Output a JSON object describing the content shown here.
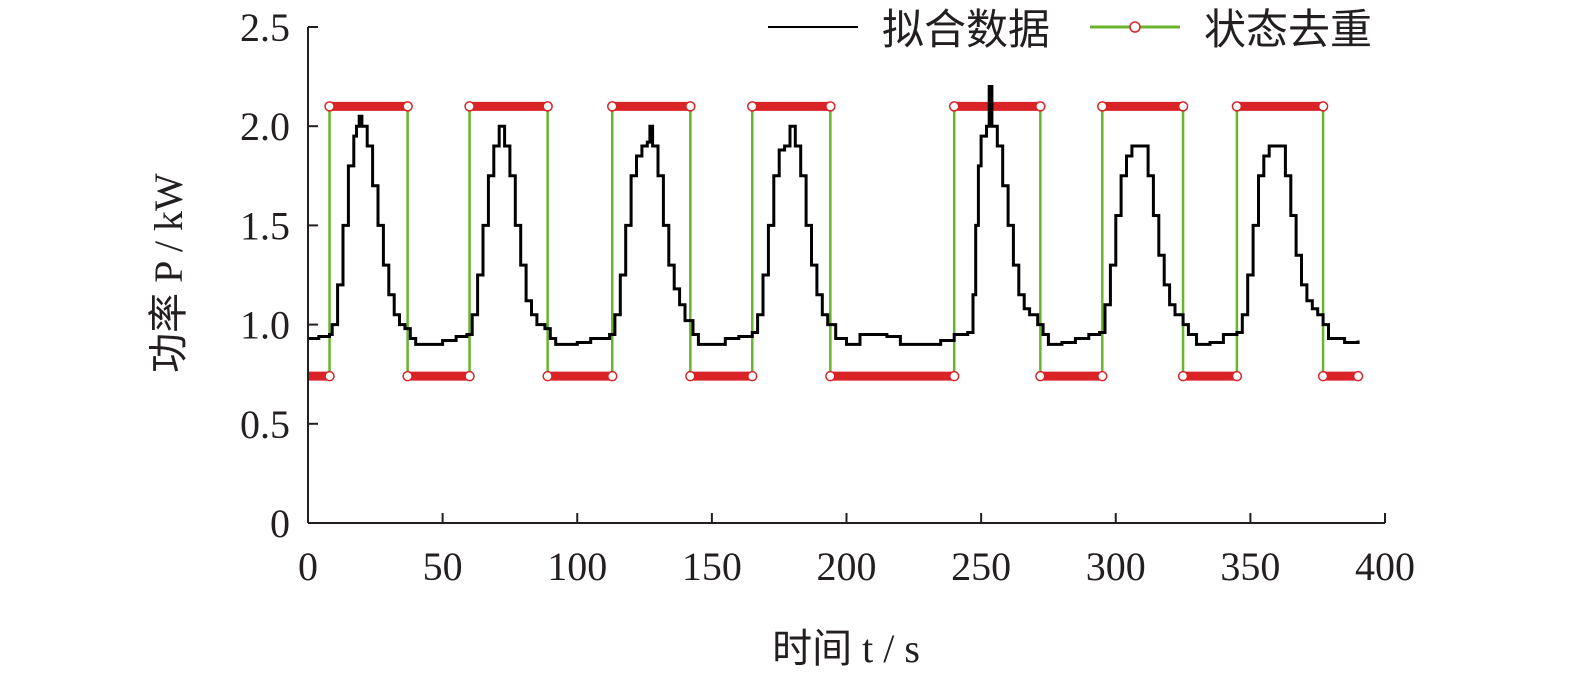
{
  "chart_data": {
    "type": "line",
    "xlabel": "时间 t / s",
    "ylabel": "功率 P / kW",
    "xlim": [
      0,
      400
    ],
    "ylim": [
      0,
      2.5
    ],
    "x_ticks": [
      "0",
      "50",
      "100",
      "150",
      "200",
      "250",
      "300",
      "350",
      "400"
    ],
    "y_ticks": [
      "0",
      "0.5",
      "1.0",
      "1.5",
      "2.0",
      "2.5"
    ],
    "legend_position": "top-right",
    "grid": false,
    "series": [
      {
        "name": "拟合数据",
        "color": "#000000",
        "style": "step-line",
        "points": [
          [
            0,
            0.93
          ],
          [
            4,
            0.94
          ],
          [
            8,
            0.95
          ],
          [
            9,
            1.0
          ],
          [
            11,
            1.2
          ],
          [
            13,
            1.5
          ],
          [
            15,
            1.8
          ],
          [
            17,
            1.95
          ],
          [
            18,
            2.0
          ],
          [
            19,
            2.05
          ],
          [
            20,
            2.0
          ],
          [
            22,
            1.9
          ],
          [
            24,
            1.7
          ],
          [
            26,
            1.5
          ],
          [
            28,
            1.3
          ],
          [
            30,
            1.15
          ],
          [
            32,
            1.05
          ],
          [
            34,
            1.0
          ],
          [
            36,
            0.98
          ],
          [
            38,
            0.93
          ],
          [
            40,
            0.9
          ],
          [
            45,
            0.9
          ],
          [
            50,
            0.92
          ],
          [
            55,
            0.94
          ],
          [
            59,
            0.95
          ],
          [
            61,
            1.05
          ],
          [
            63,
            1.25
          ],
          [
            65,
            1.5
          ],
          [
            67,
            1.75
          ],
          [
            69,
            1.9
          ],
          [
            71,
            2.0
          ],
          [
            73,
            1.9
          ],
          [
            75,
            1.75
          ],
          [
            77,
            1.5
          ],
          [
            79,
            1.3
          ],
          [
            81,
            1.12
          ],
          [
            83,
            1.05
          ],
          [
            85,
            1.0
          ],
          [
            88,
            0.98
          ],
          [
            90,
            0.93
          ],
          [
            92,
            0.9
          ],
          [
            100,
            0.91
          ],
          [
            105,
            0.93
          ],
          [
            112,
            0.95
          ],
          [
            114,
            1.05
          ],
          [
            116,
            1.25
          ],
          [
            118,
            1.5
          ],
          [
            120,
            1.75
          ],
          [
            122,
            1.85
          ],
          [
            124,
            1.9
          ],
          [
            126,
            1.92
          ],
          [
            127,
            2.0
          ],
          [
            128,
            1.9
          ],
          [
            130,
            1.75
          ],
          [
            132,
            1.5
          ],
          [
            134,
            1.3
          ],
          [
            136,
            1.18
          ],
          [
            138,
            1.1
          ],
          [
            140,
            1.02
          ],
          [
            143,
            0.95
          ],
          [
            145,
            0.9
          ],
          [
            150,
            0.9
          ],
          [
            155,
            0.93
          ],
          [
            160,
            0.94
          ],
          [
            165,
            0.96
          ],
          [
            167,
            1.05
          ],
          [
            169,
            1.25
          ],
          [
            171,
            1.5
          ],
          [
            173,
            1.75
          ],
          [
            175,
            1.88
          ],
          [
            177,
            1.9
          ],
          [
            179,
            2.0
          ],
          [
            181,
            1.9
          ],
          [
            183,
            1.75
          ],
          [
            185,
            1.5
          ],
          [
            187,
            1.3
          ],
          [
            189,
            1.15
          ],
          [
            191,
            1.05
          ],
          [
            193,
            1.0
          ],
          [
            196,
            0.93
          ],
          [
            200,
            0.9
          ],
          [
            205,
            0.95
          ],
          [
            210,
            0.95
          ],
          [
            215,
            0.94
          ],
          [
            220,
            0.9
          ],
          [
            230,
            0.9
          ],
          [
            235,
            0.92
          ],
          [
            240,
            0.95
          ],
          [
            245,
            0.96
          ],
          [
            247,
            1.15
          ],
          [
            248,
            1.5
          ],
          [
            249,
            1.8
          ],
          [
            250,
            1.95
          ],
          [
            252,
            2.0
          ],
          [
            253,
            2.2
          ],
          [
            254,
            2.0
          ],
          [
            256,
            1.9
          ],
          [
            258,
            1.7
          ],
          [
            260,
            1.5
          ],
          [
            262,
            1.3
          ],
          [
            264,
            1.15
          ],
          [
            266,
            1.08
          ],
          [
            268,
            1.05
          ],
          [
            271,
            1.0
          ],
          [
            273,
            0.95
          ],
          [
            275,
            0.9
          ],
          [
            280,
            0.91
          ],
          [
            285,
            0.93
          ],
          [
            290,
            0.95
          ],
          [
            294,
            0.96
          ],
          [
            296,
            1.1
          ],
          [
            298,
            1.3
          ],
          [
            300,
            1.55
          ],
          [
            302,
            1.75
          ],
          [
            304,
            1.85
          ],
          [
            306,
            1.9
          ],
          [
            310,
            1.9
          ],
          [
            312,
            1.75
          ],
          [
            314,
            1.55
          ],
          [
            316,
            1.35
          ],
          [
            318,
            1.2
          ],
          [
            320,
            1.1
          ],
          [
            322,
            1.05
          ],
          [
            325,
            1.0
          ],
          [
            327,
            0.95
          ],
          [
            330,
            0.9
          ],
          [
            335,
            0.91
          ],
          [
            340,
            0.95
          ],
          [
            345,
            0.96
          ],
          [
            347,
            1.05
          ],
          [
            349,
            1.25
          ],
          [
            351,
            1.5
          ],
          [
            353,
            1.75
          ],
          [
            355,
            1.85
          ],
          [
            357,
            1.9
          ],
          [
            361,
            1.9
          ],
          [
            363,
            1.75
          ],
          [
            365,
            1.55
          ],
          [
            367,
            1.35
          ],
          [
            369,
            1.2
          ],
          [
            371,
            1.12
          ],
          [
            373,
            1.08
          ],
          [
            375,
            1.05
          ],
          [
            377,
            1.0
          ],
          [
            379,
            0.93
          ],
          [
            385,
            0.91
          ],
          [
            390,
            0.92
          ]
        ]
      },
      {
        "name": "状态去重",
        "color": "#6ab42d",
        "high_color": "#d92327",
        "low_color": "#d92327",
        "style": "two-state",
        "high_value": 2.1,
        "low_value": 0.74,
        "segments": [
          {
            "state": "low",
            "x0": 0,
            "x1": 8
          },
          {
            "state": "high",
            "x0": 8,
            "x1": 37
          },
          {
            "state": "low",
            "x0": 37,
            "x1": 60
          },
          {
            "state": "high",
            "x0": 60,
            "x1": 89
          },
          {
            "state": "low",
            "x0": 89,
            "x1": 113
          },
          {
            "state": "high",
            "x0": 113,
            "x1": 142
          },
          {
            "state": "low",
            "x0": 142,
            "x1": 165
          },
          {
            "state": "high",
            "x0": 165,
            "x1": 194
          },
          {
            "state": "low",
            "x0": 194,
            "x1": 240
          },
          {
            "state": "high",
            "x0": 240,
            "x1": 272
          },
          {
            "state": "low",
            "x0": 272,
            "x1": 295
          },
          {
            "state": "high",
            "x0": 295,
            "x1": 325
          },
          {
            "state": "low",
            "x0": 325,
            "x1": 345
          },
          {
            "state": "high",
            "x0": 345,
            "x1": 377
          },
          {
            "state": "low",
            "x0": 377,
            "x1": 390
          }
        ]
      }
    ]
  }
}
